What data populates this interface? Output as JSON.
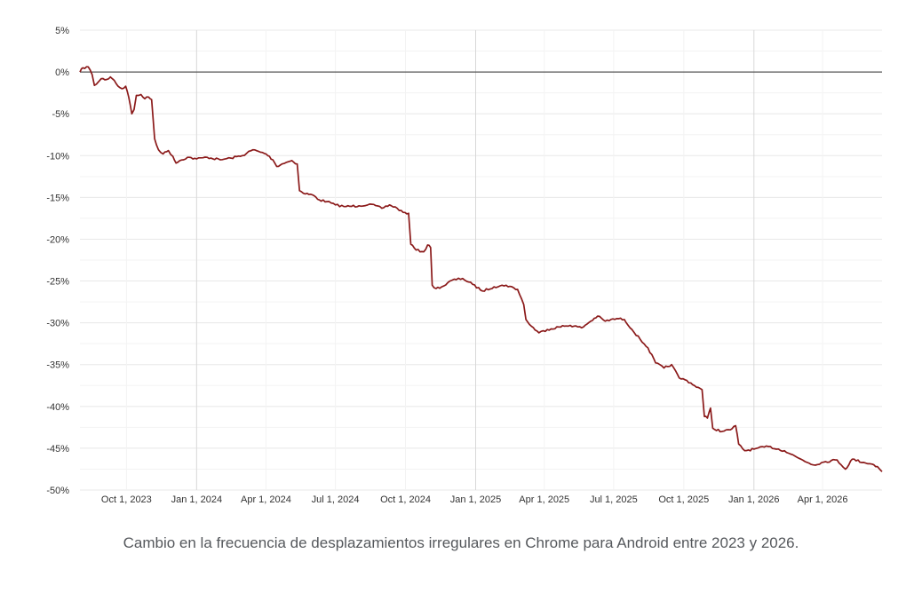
{
  "chart_data": {
    "type": "line",
    "title": "",
    "xlabel": "",
    "ylabel": "",
    "ylim": [
      -50,
      5
    ],
    "xlim": [
      "2023-08-01",
      "2026-06-18"
    ],
    "y_ticks": [
      5,
      0,
      -5,
      -10,
      -15,
      -20,
      -25,
      -30,
      -35,
      -40,
      -45,
      -50
    ],
    "y_tick_labels": [
      "5%",
      "0%",
      "-5%",
      "-10%",
      "-15%",
      "-20%",
      "-25%",
      "-30%",
      "-35%",
      "-40%",
      "-45%",
      "-50%"
    ],
    "x_ticks": [
      "2023-10-01",
      "2024-01-01",
      "2024-04-01",
      "2024-07-01",
      "2024-10-01",
      "2025-01-01",
      "2025-04-01",
      "2025-07-01",
      "2025-10-01",
      "2026-01-01",
      "2026-04-01"
    ],
    "x_tick_labels": [
      "Oct 1, 2023",
      "Jan 1, 2024",
      "Apr 1, 2024",
      "Jul 1, 2024",
      "Oct 1, 2024",
      "Jan 1, 2025",
      "Apr 1, 2025",
      "Jul 1, 2025",
      "Oct 1, 2025",
      "Jan 1, 2026",
      "Apr 1, 2026"
    ],
    "major_gridlines_x": [
      "2024-01-01",
      "2025-01-01",
      "2026-01-01"
    ],
    "grid": true,
    "zero_line": true,
    "series": [
      {
        "color": "#8b1a1a",
        "points": [
          [
            "2023-08-01",
            0.0
          ],
          [
            "2023-08-05",
            0.5
          ],
          [
            "2023-08-12",
            0.6
          ],
          [
            "2023-08-17",
            -0.3
          ],
          [
            "2023-08-20",
            -1.6
          ],
          [
            "2023-08-25",
            -1.2
          ],
          [
            "2023-08-29",
            -0.8
          ],
          [
            "2023-09-05",
            -0.9
          ],
          [
            "2023-09-10",
            -0.6
          ],
          [
            "2023-09-15",
            -1.0
          ],
          [
            "2023-09-20",
            -1.7
          ],
          [
            "2023-09-25",
            -2.0
          ],
          [
            "2023-09-30",
            -1.7
          ],
          [
            "2023-10-04",
            -3.0
          ],
          [
            "2023-10-08",
            -5.0
          ],
          [
            "2023-10-11",
            -4.5
          ],
          [
            "2023-10-14",
            -2.8
          ],
          [
            "2023-10-20",
            -2.7
          ],
          [
            "2023-10-25",
            -3.2
          ],
          [
            "2023-10-30",
            -3.0
          ],
          [
            "2023-11-03",
            -3.3
          ],
          [
            "2023-11-07",
            -8.0
          ],
          [
            "2023-11-12",
            -9.3
          ],
          [
            "2023-11-18",
            -9.8
          ],
          [
            "2023-11-25",
            -9.4
          ],
          [
            "2023-12-01",
            -10.1
          ],
          [
            "2023-12-05",
            -10.9
          ],
          [
            "2023-12-10",
            -10.6
          ],
          [
            "2023-12-20",
            -10.2
          ],
          [
            "2024-01-01",
            -10.4
          ],
          [
            "2024-01-15",
            -10.2
          ],
          [
            "2024-02-01",
            -10.5
          ],
          [
            "2024-02-15",
            -10.3
          ],
          [
            "2024-03-01",
            -10.0
          ],
          [
            "2024-03-15",
            -9.3
          ],
          [
            "2024-03-25",
            -9.6
          ],
          [
            "2024-04-01",
            -9.8
          ],
          [
            "2024-04-10",
            -10.5
          ],
          [
            "2024-04-15",
            -11.3
          ],
          [
            "2024-04-22",
            -11.0
          ],
          [
            "2024-04-28",
            -10.8
          ],
          [
            "2024-05-05",
            -10.6
          ],
          [
            "2024-05-12",
            -11.0
          ],
          [
            "2024-05-15",
            -14.2
          ],
          [
            "2024-05-20",
            -14.5
          ],
          [
            "2024-06-01",
            -14.7
          ],
          [
            "2024-06-10",
            -15.3
          ],
          [
            "2024-06-20",
            -15.5
          ],
          [
            "2024-07-01",
            -15.9
          ],
          [
            "2024-07-15",
            -16.1
          ],
          [
            "2024-08-01",
            -16.0
          ],
          [
            "2024-08-15",
            -15.8
          ],
          [
            "2024-08-31",
            -16.3
          ],
          [
            "2024-09-10",
            -15.9
          ],
          [
            "2024-09-20",
            -16.3
          ],
          [
            "2024-09-28",
            -16.8
          ],
          [
            "2024-10-05",
            -16.9
          ],
          [
            "2024-10-08",
            -20.6
          ],
          [
            "2024-10-15",
            -21.3
          ],
          [
            "2024-10-25",
            -21.5
          ],
          [
            "2024-10-30",
            -20.7
          ],
          [
            "2024-11-03",
            -21.0
          ],
          [
            "2024-11-05",
            -25.5
          ],
          [
            "2024-11-10",
            -25.9
          ],
          [
            "2024-11-20",
            -25.6
          ],
          [
            "2024-12-01",
            -24.9
          ],
          [
            "2024-12-15",
            -24.7
          ],
          [
            "2024-12-28",
            -25.4
          ],
          [
            "2025-01-10",
            -26.2
          ],
          [
            "2025-01-25",
            -25.7
          ],
          [
            "2025-02-10",
            -25.5
          ],
          [
            "2025-02-25",
            -26.0
          ],
          [
            "2025-03-05",
            -27.8
          ],
          [
            "2025-03-08",
            -29.6
          ],
          [
            "2025-03-15",
            -30.4
          ],
          [
            "2025-03-25",
            -31.2
          ],
          [
            "2025-04-05",
            -30.8
          ],
          [
            "2025-04-20",
            -30.5
          ],
          [
            "2025-05-05",
            -30.3
          ],
          [
            "2025-05-20",
            -30.6
          ],
          [
            "2025-06-01",
            -29.8
          ],
          [
            "2025-06-10",
            -29.2
          ],
          [
            "2025-06-20",
            -29.8
          ],
          [
            "2025-07-05",
            -29.5
          ],
          [
            "2025-07-15",
            -29.6
          ],
          [
            "2025-07-25",
            -30.8
          ],
          [
            "2025-08-05",
            -32.0
          ],
          [
            "2025-08-15",
            -33.0
          ],
          [
            "2025-08-25",
            -34.8
          ],
          [
            "2025-09-05",
            -35.4
          ],
          [
            "2025-09-15",
            -35.0
          ],
          [
            "2025-09-25",
            -36.6
          ],
          [
            "2025-10-05",
            -36.9
          ],
          [
            "2025-10-15",
            -37.5
          ],
          [
            "2025-10-25",
            -38.0
          ],
          [
            "2025-10-28",
            -41.2
          ],
          [
            "2025-11-01",
            -41.4
          ],
          [
            "2025-11-05",
            -40.2
          ],
          [
            "2025-11-08",
            -42.6
          ],
          [
            "2025-11-20",
            -43.0
          ],
          [
            "2025-12-01",
            -42.8
          ],
          [
            "2025-12-08",
            -42.3
          ],
          [
            "2025-12-12",
            -44.5
          ],
          [
            "2025-12-20",
            -45.3
          ],
          [
            "2026-01-01",
            -45.1
          ],
          [
            "2026-01-20",
            -44.8
          ],
          [
            "2026-02-10",
            -45.3
          ],
          [
            "2026-03-01",
            -46.2
          ],
          [
            "2026-03-20",
            -47.0
          ],
          [
            "2026-04-05",
            -46.6
          ],
          [
            "2026-04-20",
            -46.4
          ],
          [
            "2026-05-01",
            -47.5
          ],
          [
            "2026-05-10",
            -46.3
          ],
          [
            "2026-05-25",
            -46.7
          ],
          [
            "2026-06-05",
            -46.9
          ],
          [
            "2026-06-12",
            -47.2
          ],
          [
            "2026-06-18",
            -47.8
          ]
        ]
      }
    ]
  },
  "caption": "Cambio en la frecuencia de desplazamientos irregulares en Chrome para Android entre 2023 y 2026.",
  "colors": {
    "line": "#8b1a1a",
    "zero_line": "#555555",
    "grid": "#e8e8e8",
    "major_grid": "#d8d8d8",
    "minor_grid": "#f3f3f3",
    "caption": "#55585c",
    "tick_text": "#333333"
  }
}
